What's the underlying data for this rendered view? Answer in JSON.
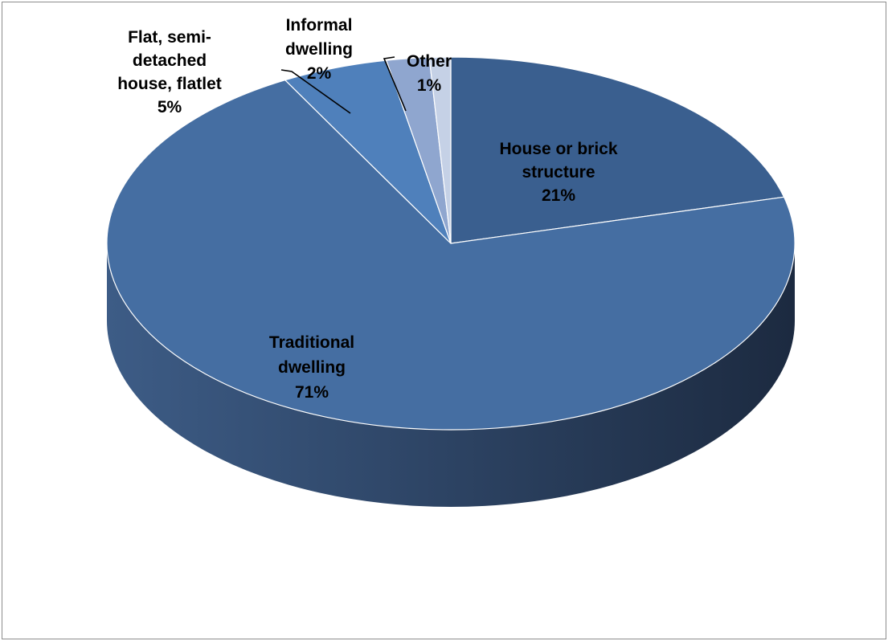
{
  "chart_data": {
    "type": "pie",
    "style": "3d",
    "title": "",
    "slices": [
      {
        "label_lines": [
          "House or brick",
          "structure"
        ],
        "percent_label": "21%",
        "value": 21
      },
      {
        "label_lines": [
          "Traditional",
          "dwelling"
        ],
        "percent_label": "71%",
        "value": 71
      },
      {
        "label_lines": [
          "Flat, semi-",
          "detached",
          "house, flatlet"
        ],
        "percent_label": "5%",
        "value": 5
      },
      {
        "label_lines": [
          "Informal",
          "dwelling"
        ],
        "percent_label": "2%",
        "value": 2
      },
      {
        "label_lines": [
          "Other"
        ],
        "percent_label": "1%",
        "value": 1
      }
    ],
    "legend": "none",
    "colors": {
      "house_or_brick": "#3a5f8f",
      "traditional": "#456ea2",
      "flat": "#4f80bb",
      "informal": "#8fa6cf",
      "other": "#c5d1e6",
      "side_dark": "#1c2a40",
      "side_light": "#3d5c86",
      "border": "#ffffff",
      "leader": "#000000"
    }
  }
}
